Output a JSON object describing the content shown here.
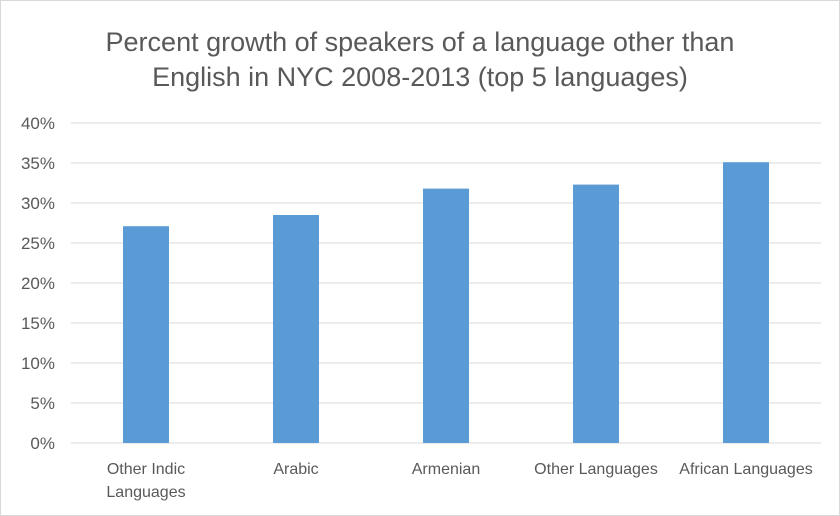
{
  "chart_data": {
    "type": "bar",
    "title": "Percent growth of speakers of a language other than English in NYC 2008-2013 (top 5 languages)",
    "title_lines": [
      "Percent growth of speakers of a language other than",
      "English in NYC 2008-2013 (top 5 languages)"
    ],
    "categories": [
      "Other Indic Languages",
      "Arabic",
      "Armenian",
      "Other Languages",
      "African Languages"
    ],
    "category_lines": [
      [
        "Other Indic",
        "Languages"
      ],
      [
        "Arabic"
      ],
      [
        "Armenian"
      ],
      [
        "Other Languages"
      ],
      [
        "African Languages"
      ]
    ],
    "values": [
      27.1,
      28.5,
      31.8,
      32.3,
      35.1
    ],
    "y_ticks": [
      "0%",
      "5%",
      "10%",
      "15%",
      "20%",
      "25%",
      "30%",
      "35%",
      "40%"
    ],
    "ylim": [
      0,
      40
    ],
    "xlabel": "",
    "ylabel": "",
    "grid": true,
    "bar_color": "#5b9bd5",
    "grid_color": "#d9d9d9",
    "text_color": "#595959"
  }
}
